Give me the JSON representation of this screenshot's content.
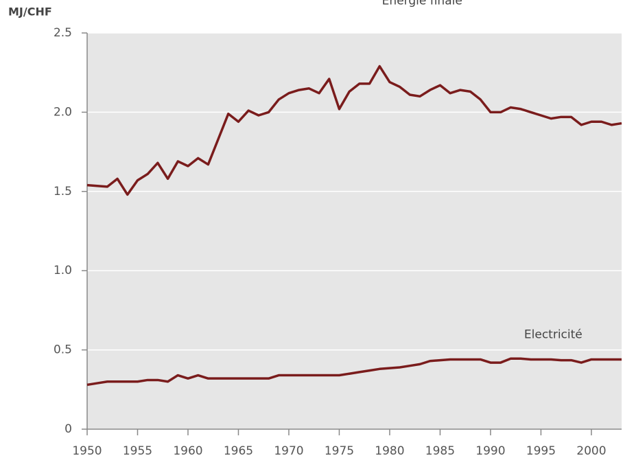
{
  "chart_data": {
    "type": "line",
    "y_label": "MJ/CHF",
    "x": [
      1950,
      1951,
      1952,
      1953,
      1954,
      1955,
      1956,
      1957,
      1958,
      1959,
      1960,
      1961,
      1962,
      1963,
      1964,
      1965,
      1966,
      1967,
      1968,
      1969,
      1970,
      1971,
      1972,
      1973,
      1974,
      1975,
      1976,
      1977,
      1978,
      1979,
      1980,
      1981,
      1982,
      1983,
      1984,
      1985,
      1986,
      1987,
      1988,
      1989,
      1990,
      1991,
      1992,
      1993,
      1994,
      1995,
      1996,
      1997,
      1998,
      1999,
      2000,
      2001,
      2002,
      2003
    ],
    "series": [
      {
        "name": "Energie finale",
        "color": "#7a1c1c",
        "values": [
          1.54,
          1.535,
          1.53,
          1.58,
          1.48,
          1.57,
          1.61,
          1.68,
          1.58,
          1.69,
          1.66,
          1.71,
          1.67,
          1.83,
          1.99,
          1.94,
          2.01,
          1.98,
          2.0,
          2.08,
          2.12,
          2.14,
          2.15,
          2.12,
          2.21,
          2.02,
          2.13,
          2.18,
          2.18,
          2.29,
          2.19,
          2.16,
          2.11,
          2.1,
          2.14,
          2.17,
          2.12,
          2.14,
          2.13,
          2.08,
          2.0,
          2.0,
          2.03,
          2.02,
          2.0,
          1.98,
          1.96,
          1.97,
          1.97,
          1.92,
          1.94,
          1.94,
          1.92,
          1.93
        ]
      },
      {
        "name": "Electricité",
        "color": "#7a1c1c",
        "values": [
          0.28,
          0.29,
          0.3,
          0.3,
          0.3,
          0.3,
          0.31,
          0.31,
          0.3,
          0.34,
          0.32,
          0.34,
          0.32,
          0.32,
          0.32,
          0.32,
          0.32,
          0.32,
          0.32,
          0.34,
          0.34,
          0.34,
          0.34,
          0.34,
          0.34,
          0.34,
          0.35,
          0.36,
          0.37,
          0.38,
          0.385,
          0.39,
          0.4,
          0.41,
          0.43,
          0.435,
          0.44,
          0.44,
          0.44,
          0.44,
          0.42,
          0.42,
          0.445,
          0.445,
          0.44,
          0.44,
          0.44,
          0.435,
          0.435,
          0.42,
          0.44,
          0.44,
          0.44,
          0.44
        ]
      }
    ],
    "xlim": [
      1950,
      2003
    ],
    "ylim": [
      0,
      2.5
    ],
    "xticks": [
      1950,
      1955,
      1960,
      1965,
      1970,
      1975,
      1980,
      1985,
      1990,
      1995,
      2000
    ],
    "yticks": [
      0,
      0.5,
      {
        "value": 1,
        "label": "1.0"
      },
      1.5,
      {
        "value": 2,
        "label": "2.0"
      },
      2.5
    ],
    "grid": true
  }
}
